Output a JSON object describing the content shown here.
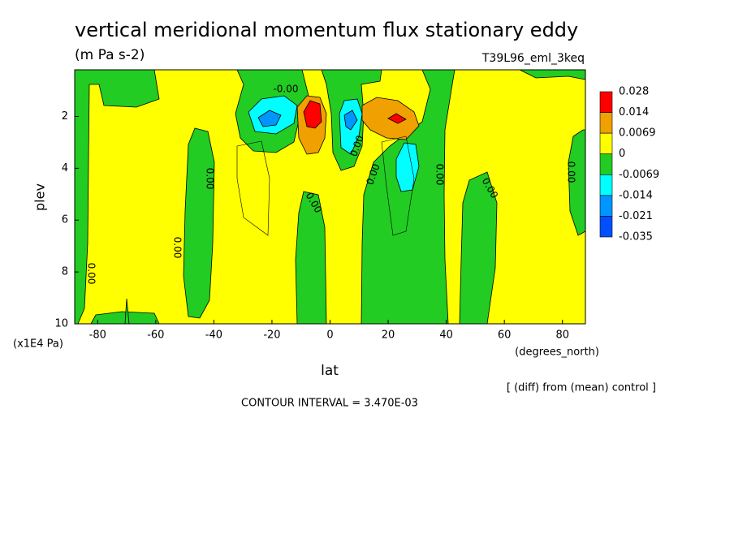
{
  "chart_data": {
    "type": "contour",
    "title": "vertical meridional momentum flux stationary eddy",
    "subtitle": "(m Pa s-2)",
    "run_label": "T39L96_eml_3keq",
    "x_label": "lat",
    "y_label": "plev",
    "x_unit": "(degrees_north)",
    "y_unit": "(x1E4 Pa)",
    "note": "[ (diff) from (mean) control ]",
    "contour_interval": "CONTOUR INTERVAL = 3.470E-03",
    "xlim": [
      -87.9,
      87.9
    ],
    "xticks": [
      -80,
      -60,
      -40,
      -20,
      0,
      20,
      40,
      60,
      80
    ],
    "ylim": [
      10,
      0.2
    ],
    "yticks": [
      2,
      4,
      6,
      8,
      10
    ],
    "levels": [
      0.028,
      0.014,
      0.0069,
      0,
      -0.0069,
      -0.014,
      -0.021,
      -0.035
    ],
    "colors": [
      "#ff0000",
      "#f0a000",
      "#ffff00",
      "#22cc22",
      "#00ffff",
      "#0096ff",
      "#0050ff"
    ],
    "contour_labels": [
      "-0.00",
      "0.00",
      "0.00",
      "0.00",
      "0.00",
      "0.00",
      "0.00",
      "0.00",
      "0.00",
      "0.00"
    ]
  }
}
